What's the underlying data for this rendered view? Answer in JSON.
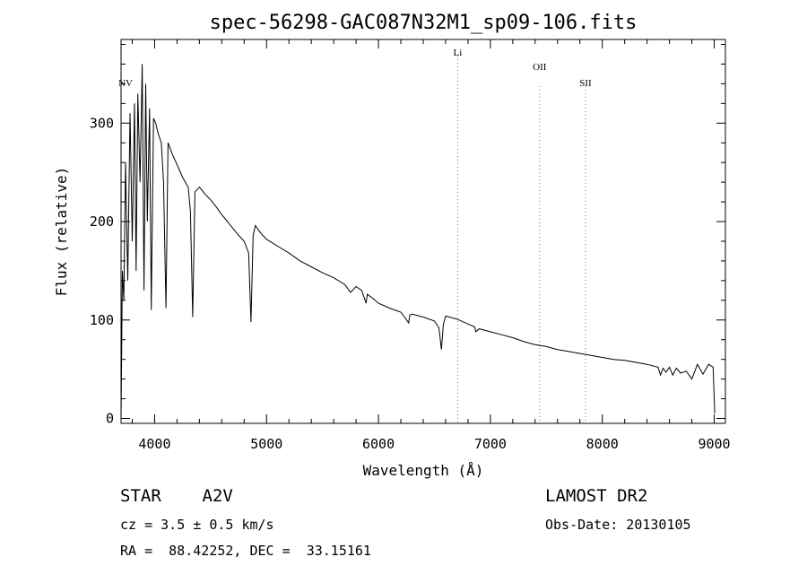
{
  "chart_data": {
    "type": "line",
    "title": "spec-56298-GAC087N32M1_sp09-106.fits",
    "xlabel": "Wavelength (Å)",
    "ylabel": "Flux (relative)",
    "xlim": [
      3700,
      9100
    ],
    "ylim": [
      -5,
      385
    ],
    "xticks": [
      4000,
      5000,
      6000,
      7000,
      8000,
      9000
    ],
    "yticks": [
      0,
      100,
      200,
      300
    ],
    "series": [
      {
        "x": [
          3700,
          3712,
          3725,
          3740,
          3760,
          3780,
          3800,
          3820,
          3835,
          3850,
          3870,
          3889,
          3905,
          3920,
          3935,
          3955,
          3970,
          3990,
          4010,
          4030,
          4060,
          4080,
          4101,
          4120,
          4160,
          4200,
          4250,
          4300,
          4320,
          4340,
          4360,
          4400,
          4450,
          4500,
          4550,
          4600,
          4650,
          4700,
          4750,
          4800,
          4840,
          4861,
          4880,
          4900,
          4950,
          5000,
          5100,
          5200,
          5300,
          5400,
          5500,
          5600,
          5700,
          5750,
          5800,
          5850,
          5890,
          5900,
          5950,
          6000,
          6100,
          6200,
          6270,
          6280,
          6300,
          6400,
          6500,
          6540,
          6563,
          6580,
          6600,
          6700,
          6800,
          6860,
          6870,
          6900,
          7000,
          7100,
          7200,
          7300,
          7400,
          7500,
          7600,
          7700,
          7800,
          7900,
          8000,
          8100,
          8200,
          8300,
          8400,
          8498,
          8520,
          8542,
          8570,
          8600,
          8630,
          8662,
          8700,
          8750,
          8800,
          8850,
          8900,
          8950,
          8990,
          9005
        ],
        "y": [
          0,
          150,
          120,
          260,
          140,
          310,
          180,
          320,
          150,
          330,
          240,
          360,
          130,
          340,
          200,
          315,
          110,
          305,
          300,
          290,
          280,
          240,
          112,
          280,
          268,
          258,
          245,
          235,
          210,
          103,
          230,
          235,
          228,
          222,
          215,
          207,
          200,
          193,
          186,
          180,
          168,
          98,
          186,
          196,
          188,
          182,
          175,
          168,
          160,
          154,
          148,
          143,
          136,
          128,
          134,
          130,
          117,
          126,
          122,
          117,
          112,
          108,
          97,
          105,
          106,
          103,
          99,
          92,
          70,
          96,
          104,
          101,
          96,
          93,
          88,
          91,
          88,
          85,
          82,
          78,
          75,
          73,
          70,
          68,
          66,
          64,
          62,
          60,
          59,
          57,
          55,
          52,
          44,
          51,
          47,
          52,
          44,
          51,
          46,
          48,
          40,
          55,
          45,
          55,
          52,
          5
        ]
      }
    ],
    "spectral_lines": [
      {
        "label": "NV",
        "x": 3740
      },
      {
        "label": "Li",
        "x": 6708
      },
      {
        "label": "OII",
        "x": 7440
      },
      {
        "label": "SII",
        "x": 7850
      }
    ]
  },
  "info": {
    "class_label": "STAR    A2V",
    "redshift": "cz = 3.5 ± 0.5 km/s",
    "coordinates": "RA =  88.42252, DEC =  33.15161",
    "survey": "LAMOST DR2",
    "obs_date": "Obs-Date: 20130105"
  }
}
